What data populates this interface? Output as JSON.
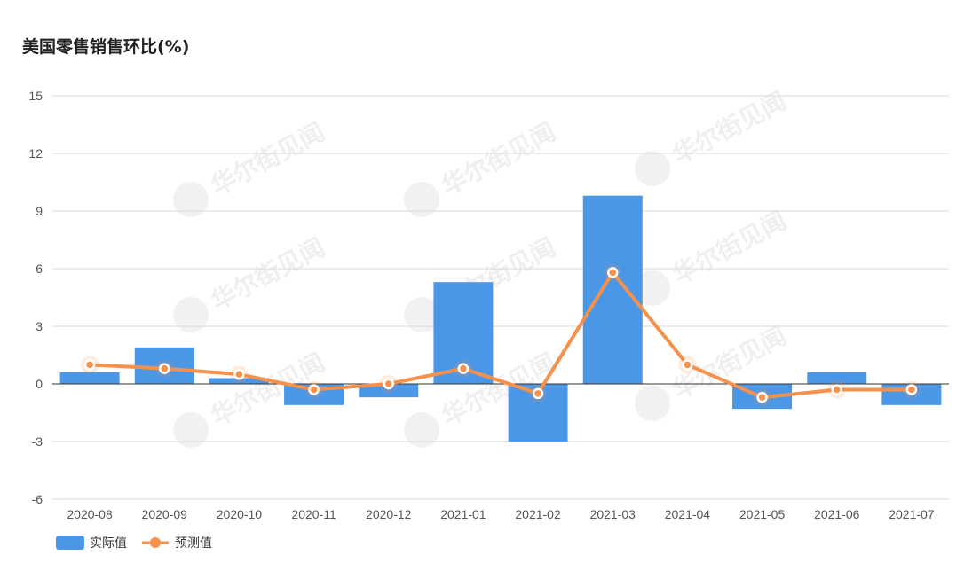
{
  "title": "美国零售销售环比(%)",
  "watermark": "华尔街见闻",
  "colors": {
    "actual": "#4a97e8",
    "forecast": "#f5914a",
    "grid": "#d9d9d9",
    "axis": "#333333"
  },
  "chart_data": {
    "type": "bar",
    "title": "美国零售销售环比(%)",
    "categories": [
      "2020-08",
      "2020-09",
      "2020-10",
      "2020-11",
      "2020-12",
      "2021-01",
      "2021-02",
      "2021-03",
      "2021-04",
      "2021-05",
      "2021-06",
      "2021-07"
    ],
    "series": [
      {
        "name": "实际值",
        "type": "bar",
        "values": [
          0.6,
          1.9,
          0.3,
          -1.1,
          -0.7,
          5.3,
          -3.0,
          9.8,
          null,
          -1.3,
          0.6,
          -1.1
        ]
      },
      {
        "name": "预测值",
        "type": "line",
        "values": [
          1.0,
          0.8,
          0.5,
          -0.3,
          0.0,
          0.8,
          -0.5,
          5.8,
          1.0,
          -0.7,
          -0.3,
          -0.3
        ]
      }
    ],
    "yticks": [
      15,
      12,
      9,
      6,
      3,
      0,
      -3,
      -6
    ],
    "ylim": [
      -6,
      15
    ],
    "grid": true,
    "legend": "bottom-left"
  }
}
